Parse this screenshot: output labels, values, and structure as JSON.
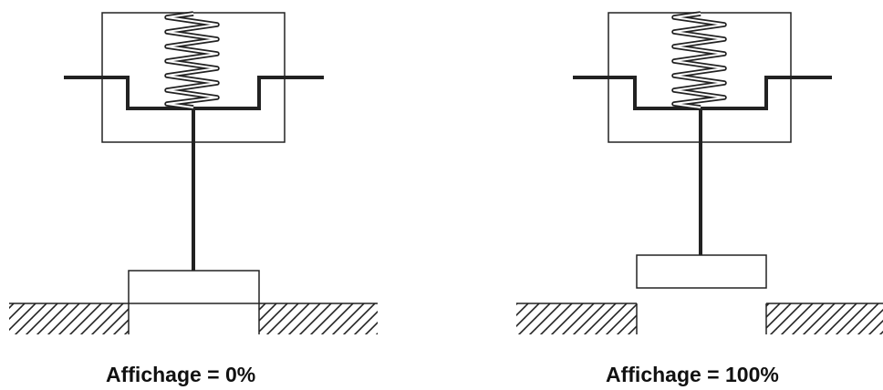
{
  "figures": [
    {
      "id": "closed",
      "caption": "Affichage = 0%"
    },
    {
      "id": "open",
      "caption": "Affichage = 100%"
    }
  ],
  "colors": {
    "line": "#222222",
    "background": "#ffffff"
  }
}
